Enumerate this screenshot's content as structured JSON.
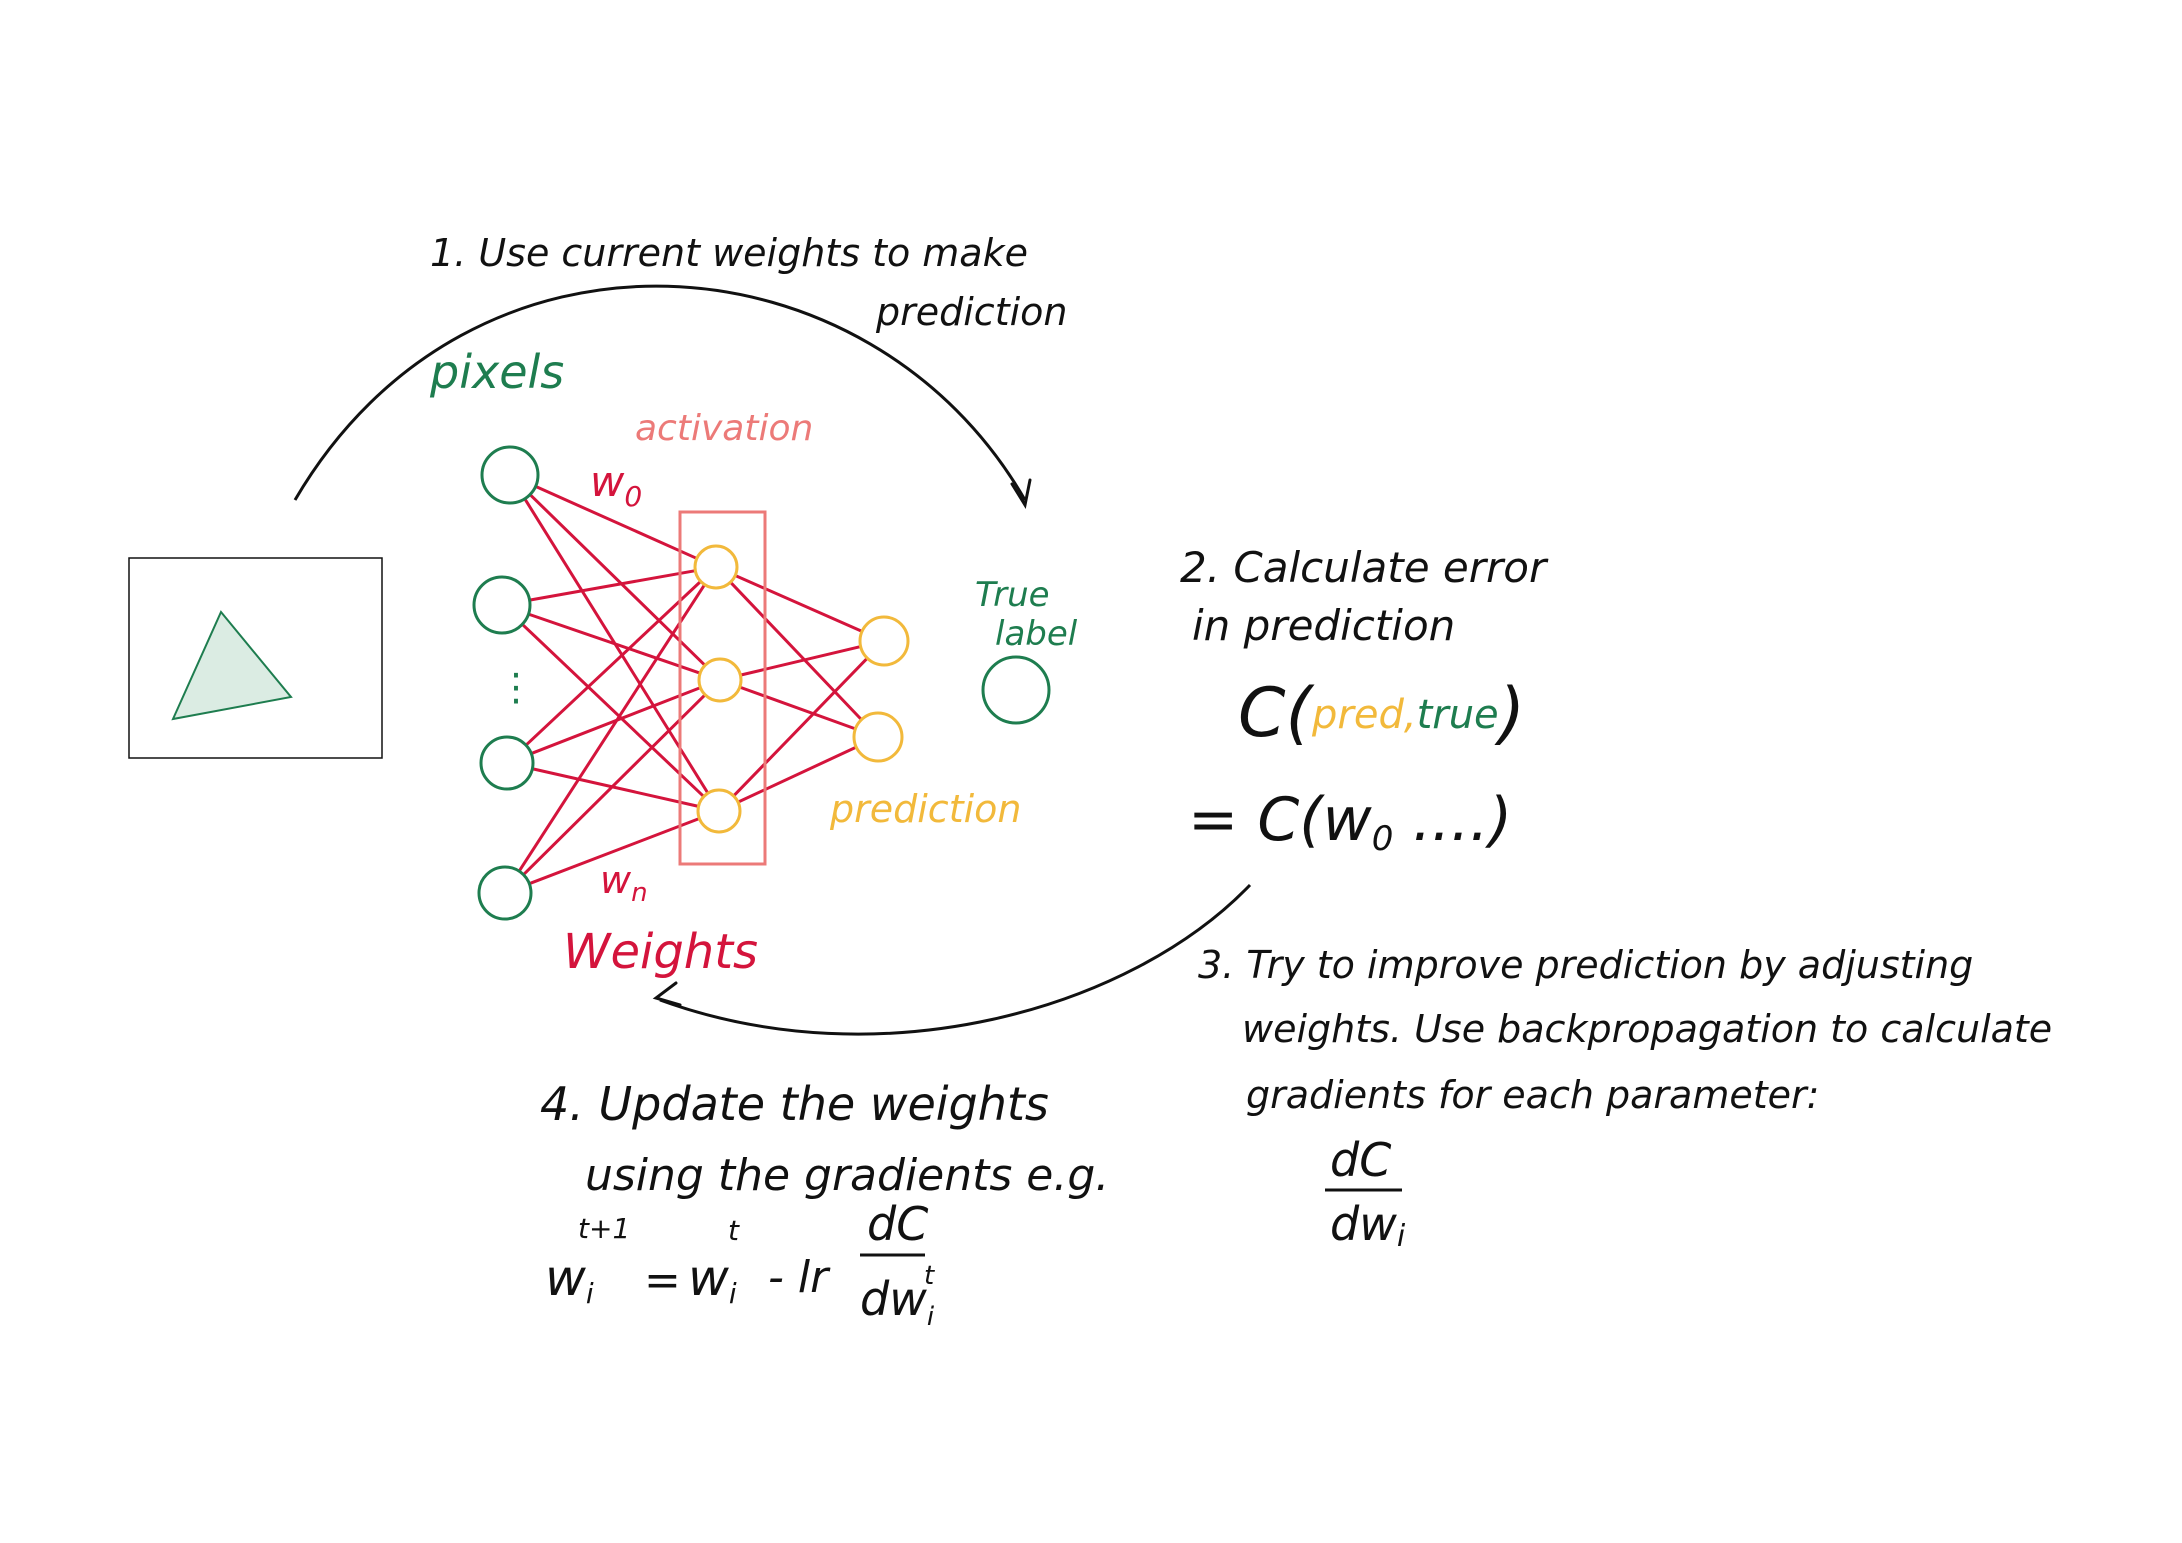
{
  "steps": {
    "step1_line1": "1. Use current weights to make",
    "step1_line2": "prediction",
    "step2_line1": "2. Calculate error",
    "step2_line2": "in prediction",
    "step3_line1": "3. Try to improve prediction by adjusting",
    "step3_line2": "weights. Use backpropagation to calculate",
    "step3_line3": "gradients for each parameter:",
    "step4_line1": "4. Update the weights",
    "step4_line2": "using the gradients e.g."
  },
  "labels": {
    "pixels": "pixels",
    "activation": "activation",
    "w0": "w",
    "w0_sub": "0",
    "wn": "w",
    "wn_sub": "n",
    "weights": "Weights",
    "true_label_1": "True",
    "true_label_2": "label",
    "prediction": "prediction",
    "vdots": "⋮"
  },
  "cost": {
    "c": "C",
    "open": "(",
    "pred": "pred,",
    "true": "true",
    "close": ")",
    "eq_line": "= C(w",
    "eq_sub": "0",
    "eq_tail": " ....)"
  },
  "gradient": {
    "num": "dC",
    "den": "dw",
    "den_sub": "i"
  },
  "update": {
    "lhs": "w",
    "lhs_sup": "t+1",
    "lhs_sub": "i",
    "eq": "=",
    "rhs": "w",
    "rhs_sup": "t",
    "rhs_sub": "i",
    "minus_lr": "- lr",
    "num": "dC",
    "den": "dw",
    "den_sup": "t",
    "den_sub": "i"
  },
  "colors": {
    "ink": "#111111",
    "green": "#1e7d4f",
    "red": "#d4143c",
    "salmon": "#ec7a78",
    "yellow": "#f2b93b",
    "triangle_fill": "#dbece3"
  }
}
